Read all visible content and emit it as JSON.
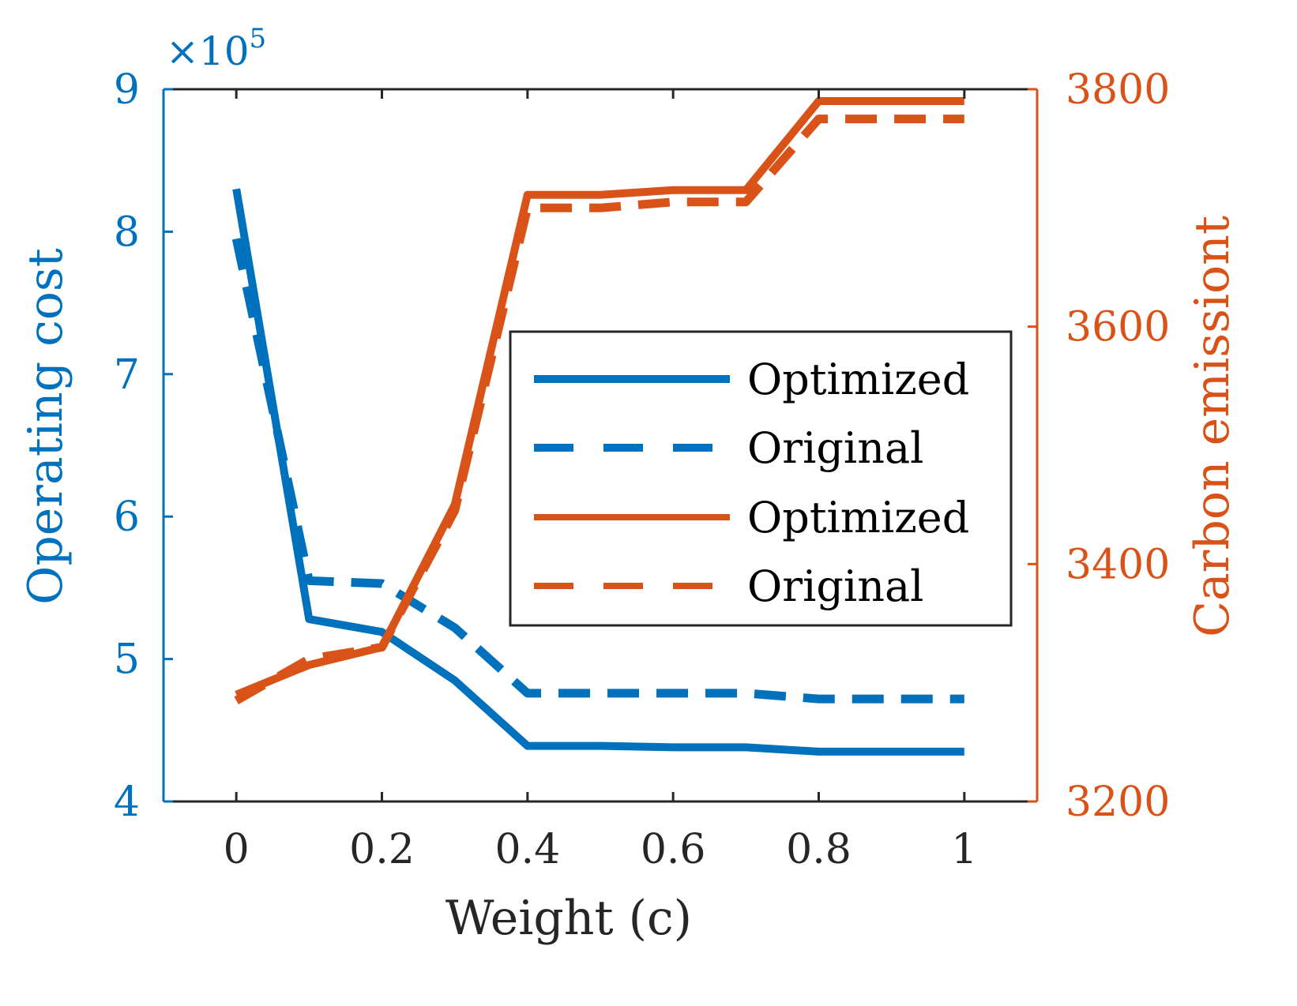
{
  "chart_data": {
    "type": "line",
    "title": "",
    "xlabel": "Weight (c)",
    "ylabel_left": "Operating cost",
    "ylabel_right": "Carbon emissiont",
    "left_axis_multiplier": "×10",
    "left_axis_multiplier_exponent": "5",
    "x": [
      0,
      0.1,
      0.2,
      0.3,
      0.4,
      0.5,
      0.6,
      0.7,
      0.8,
      0.9,
      1.0
    ],
    "xlim": [
      -0.1,
      1.1
    ],
    "ylim_left": [
      4,
      9
    ],
    "ylim_right": [
      3200,
      3800
    ],
    "x_ticks": [
      0,
      0.2,
      0.4,
      0.6,
      0.8,
      1
    ],
    "x_tick_labels": [
      "0",
      "0.2",
      "0.4",
      "0.6",
      "0.8",
      "1"
    ],
    "left_ticks": [
      4,
      5,
      6,
      7,
      8,
      9
    ],
    "left_tick_labels": [
      "4",
      "5",
      "6",
      "7",
      "8",
      "9"
    ],
    "right_ticks": [
      3200,
      3400,
      3600,
      3800
    ],
    "right_tick_labels": [
      "3200",
      "3400",
      "3600",
      "3800"
    ],
    "colors": {
      "cost": "#0072BD",
      "carbon": "#D95319",
      "axis": "#262626"
    },
    "series": [
      {
        "name": "Optimized",
        "axis": "left",
        "color": "#0072BD",
        "style": "solid",
        "values": [
          8.3,
          5.28,
          5.19,
          4.85,
          4.39,
          4.39,
          4.38,
          4.38,
          4.35,
          4.35,
          4.35
        ]
      },
      {
        "name": "Original",
        "axis": "left",
        "color": "#0072BD",
        "style": "dashed",
        "values": [
          7.95,
          5.55,
          5.53,
          5.22,
          4.76,
          4.76,
          4.76,
          4.76,
          4.72,
          4.72,
          4.72
        ]
      },
      {
        "name": "Optimized",
        "axis": "right",
        "color": "#D95319",
        "style": "solid",
        "values": [
          3290,
          3315,
          3330,
          3450,
          3711,
          3711,
          3715,
          3715,
          3790,
          3790,
          3790
        ]
      },
      {
        "name": "Original",
        "axis": "right",
        "color": "#D95319",
        "style": "dashed",
        "values": [
          3285,
          3320,
          3330,
          3445,
          3700,
          3700,
          3705,
          3705,
          3775,
          3775,
          3775
        ]
      }
    ],
    "legend": [
      "Optimized",
      "Original",
      "Optimized",
      "Original"
    ],
    "legend_position": "center-right",
    "grid": false
  }
}
